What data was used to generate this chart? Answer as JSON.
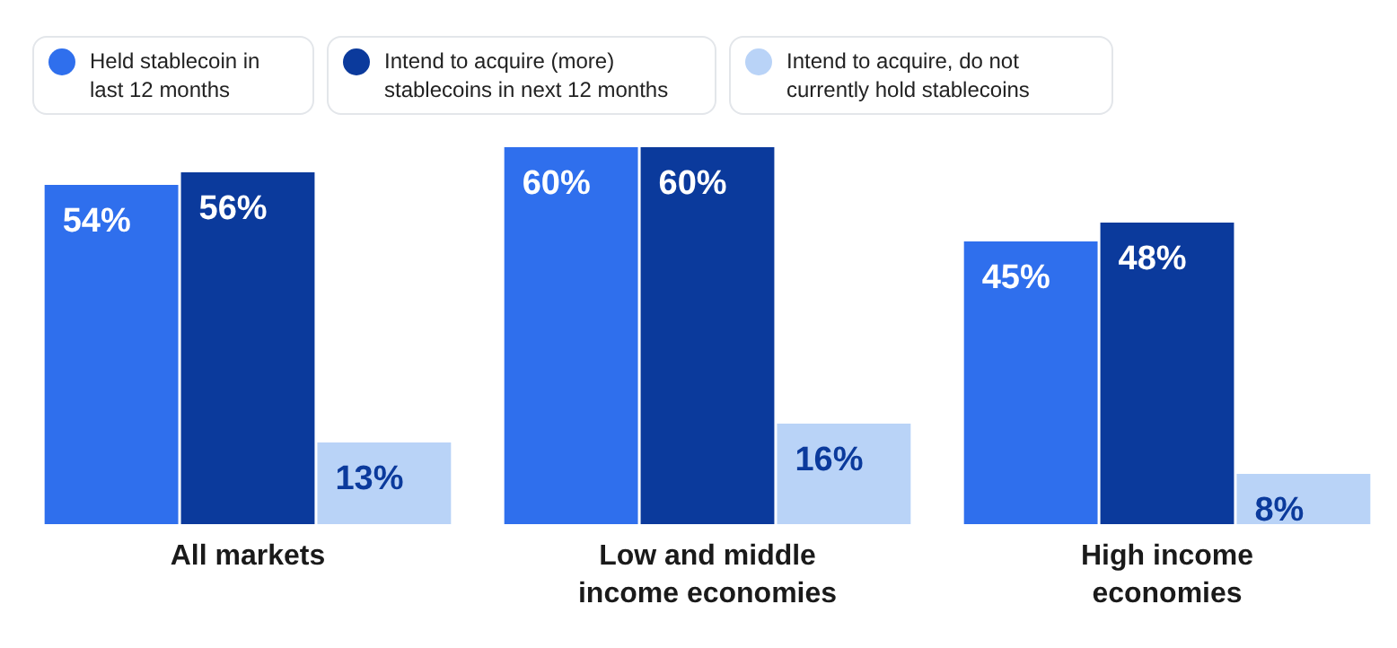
{
  "chart_data": {
    "type": "bar",
    "categories": [
      "All markets",
      "Low and middle income economies",
      "High income economies"
    ],
    "series": [
      {
        "name": "Held stablecoin in last 12 months",
        "color": "#2f6fed",
        "values": [
          54,
          60,
          45
        ],
        "value_labels": [
          "54%",
          "60%",
          "45%"
        ]
      },
      {
        "name": "Intend to acquire (more) stablecoins in next 12 months",
        "color": "#0b3a9c",
        "values": [
          56,
          60,
          48
        ],
        "value_labels": [
          "56%",
          "60%",
          "48%"
        ]
      },
      {
        "name": "Intend to acquire, do not currently hold stablecoins",
        "color": "#b9d3f7",
        "values": [
          13,
          16,
          8
        ],
        "value_labels": [
          "13%",
          "16%",
          "8%"
        ]
      }
    ],
    "data_labels": false,
    "legend": "top left"
  }
}
